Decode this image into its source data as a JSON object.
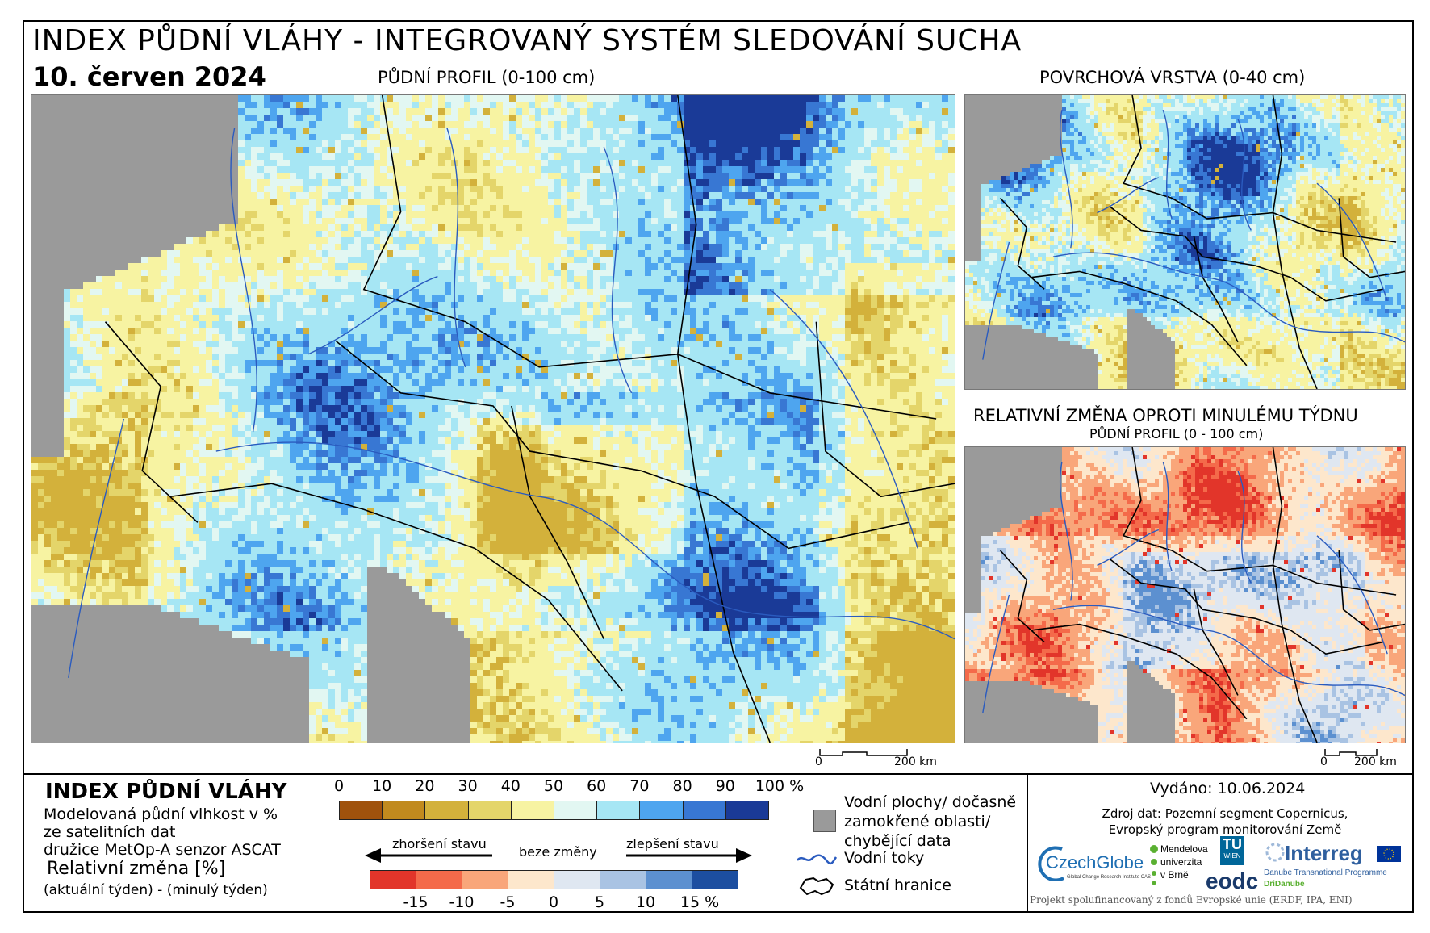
{
  "header": {
    "title": "INDEX PŮDNÍ VLÁHY - INTEGROVANÝ SYSTÉM SLEDOVÁNÍ SUCHA",
    "date": "10. červen 2024"
  },
  "maps": {
    "main_label": "PŮDNÍ PROFIL (0-100 cm)",
    "surface_label": "POVRCHOVÁ VRSTVA (0-40 cm)",
    "change_label": "RELATIVNÍ ZMĚNA OPROTI MINULÉMU TÝDNU",
    "change_sublabel": "PŮDNÍ PROFIL (0 - 100 cm)",
    "scale_main": {
      "zero": "0",
      "distance": "200 km"
    },
    "scale_small": {
      "zero": "0",
      "distance": "200 km"
    }
  },
  "legend": {
    "title": "INDEX PŮDNÍ VLÁHY",
    "desc_line1": "Modelovaná půdní vlhkost v %",
    "desc_line2": "ze satelitních dat",
    "desc_line3": "družice MetOp-A senzor ASCAT",
    "rel_title": "Relativní změna [%]",
    "rel_sub": "(aktuální týden) - (minulý týden)",
    "moisture_ticks": [
      "0",
      "10",
      "20",
      "30",
      "40",
      "50",
      "60",
      "70",
      "80",
      "90",
      "100 %"
    ],
    "moisture_colors": [
      "#a0520c",
      "#c18a1e",
      "#d3b13b",
      "#e4d56a",
      "#f7f3a2",
      "#e2f7f2",
      "#a6e6f4",
      "#4ea5ef",
      "#3877d3",
      "#1a3a97"
    ],
    "worse_label": "zhoršení stavu",
    "nochange_label": "beze změny",
    "better_label": "zlepšení stavu",
    "change_ticks": [
      "-15",
      "-10",
      "-5",
      "0",
      "5",
      "10",
      "15 %"
    ],
    "change_colors": [
      "#e2352a",
      "#f46a4a",
      "#f9a67a",
      "#fde7cc",
      "#dfe7f1",
      "#a9c3e3",
      "#5c90d0",
      "#1c4ea0"
    ],
    "key_water": "Vodní plochy/ dočasně zamokřené oblasti/ chybějící data",
    "key_water_l1": "Vodní plochy/ dočasně",
    "key_water_l2": "zamokřené oblasti/",
    "key_water_l3": "chybějící data",
    "key_rivers": "Vodní toky",
    "key_borders": "Státní hranice"
  },
  "info": {
    "issued": "Vydáno: 10.06.2024",
    "source_l1": "Zdroj dat: Pozemní segment Copernicus,",
    "source_l2": "Evropský program monitorování Země",
    "footer": "Projekt spolufinancovaný z fondů Evropské unie (ERDF, IPA, ENI)"
  },
  "logos": {
    "czechglobe": "CzechGlobe",
    "czechglobe_sub": "Global Change Research Institute CAS",
    "mendel_l1": "Mendelova",
    "mendel_l2": "univerzita",
    "mendel_l3": "v Brně",
    "tu_l1": "TU",
    "tu_l2": "WIEN",
    "eodc": "eodc",
    "interreg": "Interreg",
    "interreg_sub1": "Danube Transnational Programme",
    "interreg_sub2": "DriDanube"
  },
  "colors": {
    "sea": "#9a9a9a",
    "river": "#2a5bbf",
    "border": "#000000"
  }
}
